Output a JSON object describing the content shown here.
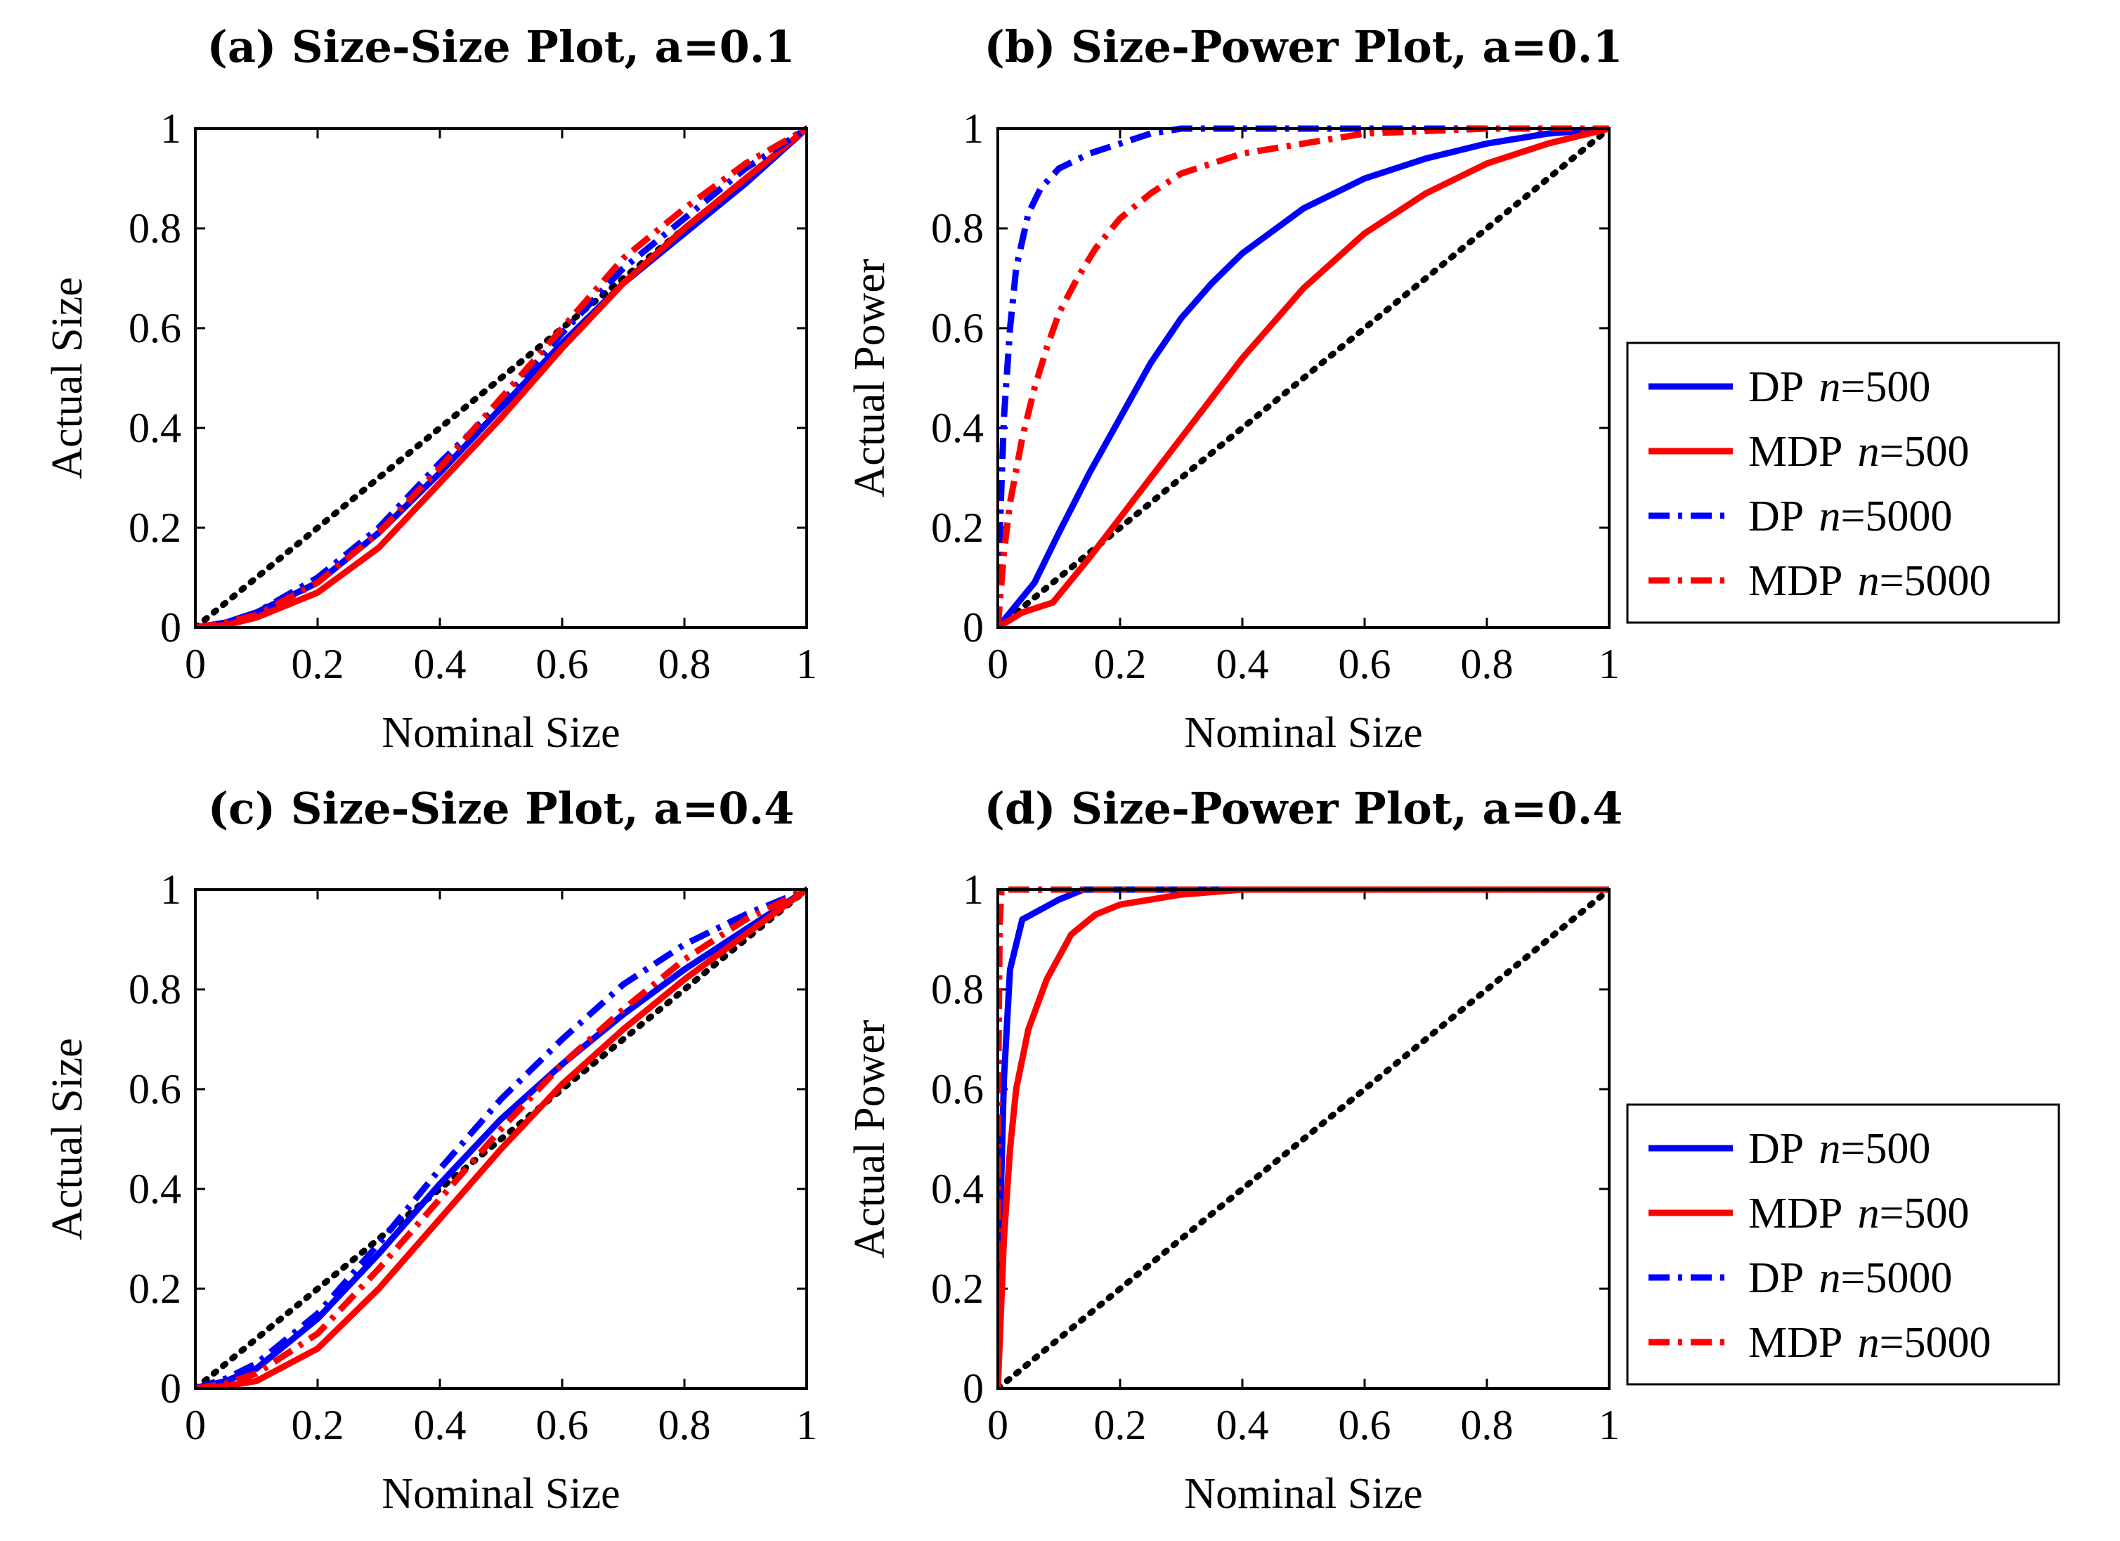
{
  "chart_data": [
    {
      "id": "a",
      "type": "line",
      "title": "(a) Size-Size Plot, a=0.1",
      "xlabel": "Nominal Size",
      "ylabel": "Actual Size",
      "xlim": [
        0,
        1
      ],
      "ylim": [
        0,
        1
      ],
      "xticks": [
        "0",
        "0.2",
        "0.4",
        "0.6",
        "0.8",
        "1"
      ],
      "yticks": [
        "0",
        "0.2",
        "0.4",
        "0.6",
        "0.8",
        "1"
      ],
      "legend": null,
      "series": [
        {
          "name": "45-degree line",
          "color": "#000000",
          "style": "dotted",
          "x": [
            0,
            1
          ],
          "y": [
            0,
            1
          ]
        },
        {
          "name": "DP n=500",
          "color": "#0000ff",
          "style": "solid",
          "x": [
            0,
            0.05,
            0.1,
            0.2,
            0.3,
            0.4,
            0.5,
            0.6,
            0.7,
            0.8,
            0.9,
            1.0
          ],
          "y": [
            0,
            0.01,
            0.03,
            0.09,
            0.19,
            0.31,
            0.44,
            0.57,
            0.69,
            0.79,
            0.89,
            1.0
          ]
        },
        {
          "name": "MDP n=500",
          "color": "#ff0000",
          "style": "solid",
          "x": [
            0,
            0.05,
            0.1,
            0.2,
            0.3,
            0.4,
            0.5,
            0.6,
            0.7,
            0.8,
            0.9,
            1.0
          ],
          "y": [
            0,
            0.005,
            0.02,
            0.07,
            0.16,
            0.29,
            0.42,
            0.56,
            0.69,
            0.8,
            0.9,
            1.0
          ]
        },
        {
          "name": "DP n=5000",
          "color": "#0000ff",
          "style": "dashdot",
          "x": [
            0,
            0.05,
            0.1,
            0.2,
            0.3,
            0.4,
            0.5,
            0.6,
            0.7,
            0.8,
            0.9,
            1.0
          ],
          "y": [
            0,
            0.01,
            0.03,
            0.1,
            0.2,
            0.33,
            0.45,
            0.59,
            0.72,
            0.82,
            0.92,
            1.0
          ]
        },
        {
          "name": "MDP n=5000",
          "color": "#ff0000",
          "style": "dashdot",
          "x": [
            0,
            0.05,
            0.1,
            0.2,
            0.3,
            0.4,
            0.5,
            0.6,
            0.7,
            0.8,
            0.9,
            1.0
          ],
          "y": [
            0,
            0.01,
            0.025,
            0.09,
            0.19,
            0.32,
            0.46,
            0.6,
            0.74,
            0.84,
            0.93,
            1.0
          ]
        }
      ]
    },
    {
      "id": "b",
      "type": "line",
      "title": "(b) Size-Power Plot, a=0.1",
      "xlabel": "Nominal Size",
      "ylabel": "Actual Power",
      "xlim": [
        0,
        1
      ],
      "ylim": [
        0,
        1
      ],
      "xticks": [
        "0",
        "0.2",
        "0.4",
        "0.6",
        "0.8",
        "1"
      ],
      "yticks": [
        "0",
        "0.2",
        "0.4",
        "0.6",
        "0.8",
        "1"
      ],
      "legend": "outside-right",
      "series": [
        {
          "name": "45-degree line",
          "color": "#000000",
          "style": "dotted",
          "x": [
            0,
            1
          ],
          "y": [
            0,
            1
          ]
        },
        {
          "name": "DP n=500",
          "color": "#0000ff",
          "style": "solid",
          "x": [
            0,
            0.02,
            0.06,
            0.1,
            0.15,
            0.2,
            0.25,
            0.3,
            0.35,
            0.4,
            0.5,
            0.6,
            0.7,
            0.8,
            0.9,
            1.0
          ],
          "y": [
            0,
            0.03,
            0.09,
            0.19,
            0.31,
            0.42,
            0.53,
            0.62,
            0.69,
            0.75,
            0.84,
            0.9,
            0.94,
            0.97,
            0.99,
            1.0
          ]
        },
        {
          "name": "MDP n=500",
          "color": "#ff0000",
          "style": "solid",
          "x": [
            0,
            0.04,
            0.09,
            0.15,
            0.2,
            0.3,
            0.4,
            0.5,
            0.6,
            0.7,
            0.8,
            0.9,
            1.0
          ],
          "y": [
            0,
            0.03,
            0.05,
            0.14,
            0.22,
            0.38,
            0.54,
            0.68,
            0.79,
            0.87,
            0.93,
            0.97,
            1.0
          ]
        },
        {
          "name": "DP n=5000",
          "color": "#0000ff",
          "style": "dashdot",
          "x": [
            0,
            0.005,
            0.01,
            0.02,
            0.03,
            0.05,
            0.07,
            0.1,
            0.15,
            0.2,
            0.25,
            0.3,
            0.4,
            0.6,
            1.0
          ],
          "y": [
            0,
            0.25,
            0.42,
            0.6,
            0.72,
            0.83,
            0.88,
            0.92,
            0.95,
            0.97,
            0.99,
            1.0,
            1.0,
            1.0,
            1.0
          ]
        },
        {
          "name": "MDP n=5000",
          "color": "#ff0000",
          "style": "dashdot",
          "x": [
            0,
            0.01,
            0.02,
            0.04,
            0.06,
            0.08,
            0.1,
            0.13,
            0.16,
            0.2,
            0.25,
            0.3,
            0.4,
            0.5,
            0.6,
            0.8,
            1.0
          ],
          "y": [
            0,
            0.15,
            0.25,
            0.38,
            0.48,
            0.56,
            0.63,
            0.7,
            0.76,
            0.82,
            0.87,
            0.91,
            0.95,
            0.97,
            0.99,
            1.0,
            1.0
          ]
        }
      ]
    },
    {
      "id": "c",
      "type": "line",
      "title": "(c) Size-Size Plot, a=0.4",
      "xlabel": "Nominal Size",
      "ylabel": "Actual Size",
      "xlim": [
        0,
        1
      ],
      "ylim": [
        0,
        1
      ],
      "xticks": [
        "0",
        "0.2",
        "0.4",
        "0.6",
        "0.8",
        "1"
      ],
      "yticks": [
        "0",
        "0.2",
        "0.4",
        "0.6",
        "0.8",
        "1"
      ],
      "legend": null,
      "series": [
        {
          "name": "45-degree line",
          "color": "#000000",
          "style": "dotted",
          "x": [
            0,
            1
          ],
          "y": [
            0,
            1
          ]
        },
        {
          "name": "DP n=500",
          "color": "#0000ff",
          "style": "solid",
          "x": [
            0,
            0.05,
            0.1,
            0.2,
            0.3,
            0.4,
            0.5,
            0.6,
            0.7,
            0.8,
            0.9,
            1.0
          ],
          "y": [
            0,
            0.015,
            0.04,
            0.14,
            0.27,
            0.41,
            0.54,
            0.65,
            0.75,
            0.84,
            0.92,
            1.0
          ]
        },
        {
          "name": "MDP n=500",
          "color": "#ff0000",
          "style": "solid",
          "x": [
            0,
            0.05,
            0.1,
            0.2,
            0.3,
            0.4,
            0.5,
            0.6,
            0.7,
            0.8,
            0.9,
            1.0
          ],
          "y": [
            0,
            0.005,
            0.015,
            0.08,
            0.2,
            0.34,
            0.48,
            0.61,
            0.72,
            0.82,
            0.91,
            1.0
          ]
        },
        {
          "name": "DP n=5000",
          "color": "#0000ff",
          "style": "dashdot",
          "x": [
            0,
            0.05,
            0.1,
            0.2,
            0.3,
            0.4,
            0.5,
            0.6,
            0.7,
            0.8,
            0.9,
            1.0
          ],
          "y": [
            0,
            0.02,
            0.05,
            0.15,
            0.29,
            0.44,
            0.58,
            0.7,
            0.81,
            0.89,
            0.95,
            1.0
          ]
        },
        {
          "name": "MDP n=5000",
          "color": "#ff0000",
          "style": "dashdot",
          "x": [
            0,
            0.05,
            0.1,
            0.2,
            0.3,
            0.4,
            0.5,
            0.6,
            0.7,
            0.8,
            0.9,
            1.0
          ],
          "y": [
            0,
            0.01,
            0.03,
            0.11,
            0.24,
            0.38,
            0.52,
            0.65,
            0.76,
            0.86,
            0.94,
            1.0
          ]
        }
      ]
    },
    {
      "id": "d",
      "type": "line",
      "title": "(d) Size-Power Plot, a=0.4",
      "xlabel": "Nominal Size",
      "ylabel": "Actual Power",
      "xlim": [
        0,
        1
      ],
      "ylim": [
        0,
        1
      ],
      "xticks": [
        "0",
        "0.2",
        "0.4",
        "0.6",
        "0.8",
        "1"
      ],
      "yticks": [
        "0",
        "0.2",
        "0.4",
        "0.6",
        "0.8",
        "1"
      ],
      "legend": "outside-right",
      "series": [
        {
          "name": "45-degree line",
          "color": "#000000",
          "style": "dotted",
          "x": [
            0,
            1
          ],
          "y": [
            0,
            1
          ]
        },
        {
          "name": "DP n=500",
          "color": "#0000ff",
          "style": "solid",
          "x": [
            0,
            0.003,
            0.01,
            0.02,
            0.04,
            0.07,
            0.1,
            0.14,
            0.2,
            0.3,
            1.0
          ],
          "y": [
            0,
            0.3,
            0.62,
            0.84,
            0.94,
            0.96,
            0.98,
            1.0,
            1.0,
            1.0,
            1.0
          ]
        },
        {
          "name": "MDP n=500",
          "color": "#ff0000",
          "style": "solid",
          "x": [
            0,
            0.01,
            0.02,
            0.03,
            0.05,
            0.08,
            0.12,
            0.16,
            0.2,
            0.3,
            0.4,
            0.5,
            1.0
          ],
          "y": [
            0,
            0.3,
            0.48,
            0.6,
            0.72,
            0.82,
            0.91,
            0.95,
            0.97,
            0.99,
            1.0,
            1.0,
            1.0
          ]
        },
        {
          "name": "DP n=5000",
          "color": "#0000ff",
          "style": "dashdot",
          "x": [
            0,
            0.001,
            0.003,
            0.006,
            1.0
          ],
          "y": [
            0,
            0.7,
            0.95,
            1.0,
            1.0
          ]
        },
        {
          "name": "MDP n=5000",
          "color": "#ff0000",
          "style": "dashdot",
          "x": [
            0,
            0.001,
            0.003,
            0.006,
            1.0
          ],
          "y": [
            0,
            0.65,
            0.93,
            1.0,
            1.0
          ]
        }
      ]
    }
  ],
  "legend_entries": [
    {
      "label": "DP",
      "n": "n",
      "eq": "=500",
      "color": "#0000ff",
      "style": "solid"
    },
    {
      "label": "MDP",
      "n": "n",
      "eq": "=500",
      "color": "#ff0000",
      "style": "solid"
    },
    {
      "label": "DP",
      "n": "n",
      "eq": "=5000",
      "color": "#0000ff",
      "style": "dashdot"
    },
    {
      "label": "MDP",
      "n": "n",
      "eq": "=5000",
      "color": "#ff0000",
      "style": "dashdot"
    }
  ]
}
